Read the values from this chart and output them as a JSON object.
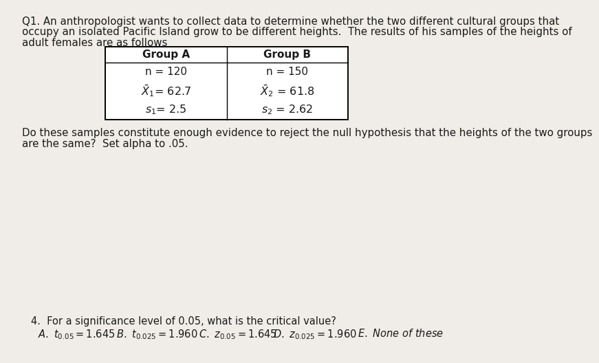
{
  "background_color": "#f0ede8",
  "text_color": "#1a1a1a",
  "q1_line1": "Q1. An anthropologist wants to collect data to determine whether the two different cultural groups that",
  "q1_line2": "occupy an isolated Pacific Island grow to be different heights.  The results of his samples of the heights of",
  "q1_line3": "adult females are as follows",
  "followup_line1": "Do these samples constitute enough evidence to reject the null hypothesis that the heights of the two groups",
  "followup_line2": "are the same?  Set alpha to .05.",
  "q4_line": "4.  For a significance level of 0.05, what is the critical value?",
  "font_size_body": 10.8,
  "font_size_table": 11.0,
  "font_size_q4": 10.5
}
